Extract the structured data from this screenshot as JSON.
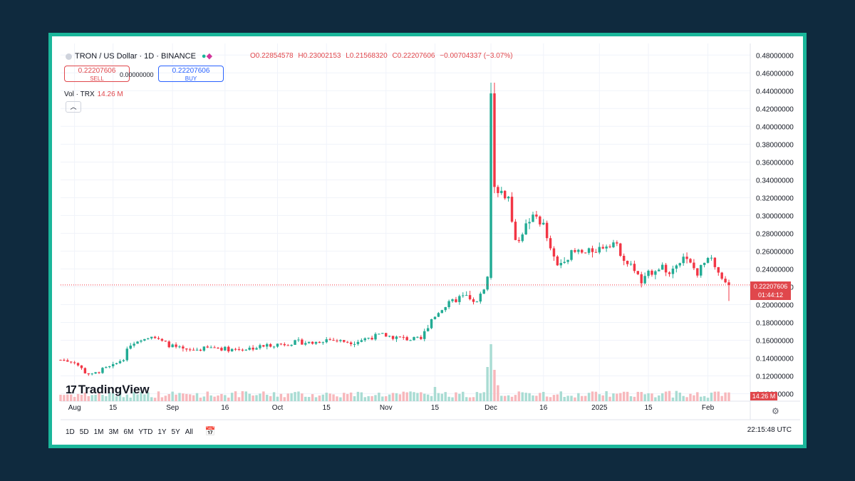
{
  "header": {
    "symbol": "TRON / US Dollar · 1D · BINANCE",
    "open": "O0.22854578",
    "high": "H0.23002153",
    "low": "L0.21568320",
    "close": "C0.22207606",
    "change": "−0.00704337 (−3.07%)"
  },
  "trade": {
    "sell_price": "0.22207606",
    "sell_label": "SELL",
    "spread": "0.00000000",
    "buy_price": "0.22207606",
    "buy_label": "BUY"
  },
  "volume": {
    "label": "Vol · TRX",
    "value": "14.26 M"
  },
  "price_tag": {
    "price": "0.22207606",
    "countdown": "01:44:12"
  },
  "volume_tag": "14.26 M",
  "logo": {
    "mark": "17",
    "text": "TradingView"
  },
  "toolbar": {
    "ranges": [
      "1D",
      "5D",
      "1M",
      "3M",
      "6M",
      "YTD",
      "1Y",
      "5Y",
      "All"
    ],
    "clock": "22:15:48 UTC"
  },
  "icons": {
    "calendar": "calendar-icon",
    "settings": "gear-icon",
    "collapse": "chevron-up-icon"
  },
  "colors": {
    "up": "#22ab94",
    "down": "#f23645",
    "frame": "#1ab69a",
    "background": "#0f2a3e"
  },
  "chart_data": {
    "type": "candlestick",
    "y_axis_labels": [
      "0.48000000",
      "0.46000000",
      "0.44000000",
      "0.42000000",
      "0.40000000",
      "0.38000000",
      "0.36000000",
      "0.34000000",
      "0.32000000",
      "0.30000000",
      "0.28000000",
      "0.26000000",
      "0.24000000",
      "0.22000000",
      "0.20000000",
      "0.18000000",
      "0.16000000",
      "0.14000000",
      "0.12000000",
      "0.10000000"
    ],
    "ylim": [
      0.09,
      0.485
    ],
    "x_labels": [
      {
        "label": "Aug",
        "day": 4
      },
      {
        "label": "15",
        "day": 15
      },
      {
        "label": "Sep",
        "day": 32
      },
      {
        "label": "16",
        "day": 47
      },
      {
        "label": "Oct",
        "day": 62
      },
      {
        "label": "15",
        "day": 76
      },
      {
        "label": "Nov",
        "day": 93
      },
      {
        "label": "15",
        "day": 107
      },
      {
        "label": "Dec",
        "day": 123
      },
      {
        "label": "16",
        "day": 138
      },
      {
        "label": "2025",
        "day": 154
      },
      {
        "label": "15",
        "day": 168
      },
      {
        "label": "Feb",
        "day": 185
      }
    ],
    "day_range": [
      0,
      191
    ],
    "current_price": 0.22207606,
    "anchors": [
      [
        0,
        0.138
      ],
      [
        4,
        0.136
      ],
      [
        7,
        0.124
      ],
      [
        9,
        0.121
      ],
      [
        12,
        0.127
      ],
      [
        15,
        0.131
      ],
      [
        18,
        0.14
      ],
      [
        20,
        0.156
      ],
      [
        23,
        0.162
      ],
      [
        26,
        0.166
      ],
      [
        28,
        0.16
      ],
      [
        32,
        0.153
      ],
      [
        36,
        0.148
      ],
      [
        40,
        0.15
      ],
      [
        44,
        0.152
      ],
      [
        48,
        0.15
      ],
      [
        52,
        0.15
      ],
      [
        56,
        0.152
      ],
      [
        60,
        0.155
      ],
      [
        64,
        0.156
      ],
      [
        68,
        0.158
      ],
      [
        72,
        0.157
      ],
      [
        76,
        0.161
      ],
      [
        80,
        0.159
      ],
      [
        84,
        0.158
      ],
      [
        88,
        0.163
      ],
      [
        92,
        0.166
      ],
      [
        96,
        0.163
      ],
      [
        100,
        0.161
      ],
      [
        103,
        0.161
      ],
      [
        106,
        0.184
      ],
      [
        109,
        0.196
      ],
      [
        112,
        0.203
      ],
      [
        114,
        0.208
      ],
      [
        116,
        0.209
      ],
      [
        118,
        0.201
      ],
      [
        120,
        0.21
      ],
      [
        122,
        0.23
      ],
      [
        123,
        0.437
      ],
      [
        124,
        0.332
      ],
      [
        126,
        0.327
      ],
      [
        128,
        0.32
      ],
      [
        130,
        0.268
      ],
      [
        132,
        0.282
      ],
      [
        134,
        0.295
      ],
      [
        136,
        0.298
      ],
      [
        138,
        0.289
      ],
      [
        140,
        0.26
      ],
      [
        142,
        0.243
      ],
      [
        144,
        0.252
      ],
      [
        146,
        0.257
      ],
      [
        148,
        0.259
      ],
      [
        150,
        0.257
      ],
      [
        152,
        0.261
      ],
      [
        154,
        0.263
      ],
      [
        156,
        0.268
      ],
      [
        158,
        0.27
      ],
      [
        160,
        0.259
      ],
      [
        162,
        0.246
      ],
      [
        164,
        0.24
      ],
      [
        166,
        0.224
      ],
      [
        168,
        0.234
      ],
      [
        170,
        0.24
      ],
      [
        172,
        0.243
      ],
      [
        174,
        0.234
      ],
      [
        176,
        0.248
      ],
      [
        178,
        0.252
      ],
      [
        180,
        0.245
      ],
      [
        182,
        0.236
      ],
      [
        184,
        0.246
      ],
      [
        186,
        0.251
      ],
      [
        188,
        0.232
      ],
      [
        190,
        0.222
      ]
    ],
    "volume_spikes": [
      {
        "day": 22,
        "value": 0.12
      },
      {
        "day": 107,
        "value": 0.25
      },
      {
        "day": 122,
        "value": 0.6
      },
      {
        "day": 123,
        "value": 1.0
      },
      {
        "day": 124,
        "value": 0.55
      },
      {
        "day": 125,
        "value": 0.28
      },
      {
        "day": 176,
        "value": 0.18
      },
      {
        "day": 186,
        "value": 0.15
      }
    ]
  }
}
